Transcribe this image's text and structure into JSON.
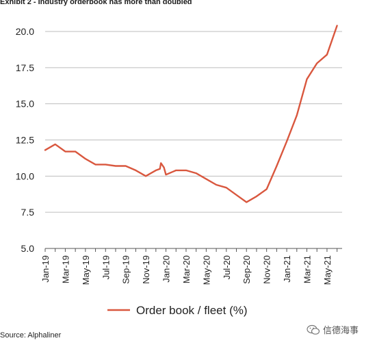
{
  "title": "Exhibit 2 - Industry orderbook has more than doubled",
  "source": "Source: Alphaliner",
  "watermark": "信德海事",
  "chart_data": {
    "type": "line",
    "title": "Exhibit 2 - Industry orderbook has more than doubled",
    "xlabel": "",
    "ylabel": "",
    "ylim": [
      5.0,
      20.0
    ],
    "yticks": [
      "5.0",
      "7.5",
      "10.0",
      "12.5",
      "15.0",
      "17.5",
      "20.0"
    ],
    "xlim": [
      0,
      29.5
    ],
    "xticks": [
      "Jan-19",
      "Mar-19",
      "May-19",
      "Jul-19",
      "Sep-19",
      "Nov-19",
      "Jan-20",
      "Mar-20",
      "May-20",
      "Jul-20",
      "Sep-20",
      "Nov-20",
      "Jan-21",
      "Mar-21",
      "May-21"
    ],
    "grid": true,
    "legend_position": "bottom",
    "series": [
      {
        "name": "Order book / fleet (%)",
        "color": "#d9573e",
        "x": [
          0,
          1,
          2,
          3,
          4,
          5,
          6,
          7,
          8,
          9,
          10,
          11,
          11.4,
          11.5,
          11.8,
          12,
          13,
          14,
          15,
          16,
          17,
          18,
          19,
          20,
          21,
          22,
          23,
          24,
          25,
          26,
          27,
          28,
          29
        ],
        "y": [
          11.8,
          12.2,
          11.7,
          11.7,
          11.2,
          10.8,
          10.8,
          10.7,
          10.7,
          10.4,
          10.0,
          10.4,
          10.5,
          10.9,
          10.6,
          10.1,
          10.4,
          10.4,
          10.2,
          9.8,
          9.4,
          9.2,
          8.7,
          8.2,
          8.6,
          9.1,
          10.7,
          12.4,
          14.2,
          16.7,
          17.8,
          18.4,
          20.4
        ]
      }
    ]
  }
}
